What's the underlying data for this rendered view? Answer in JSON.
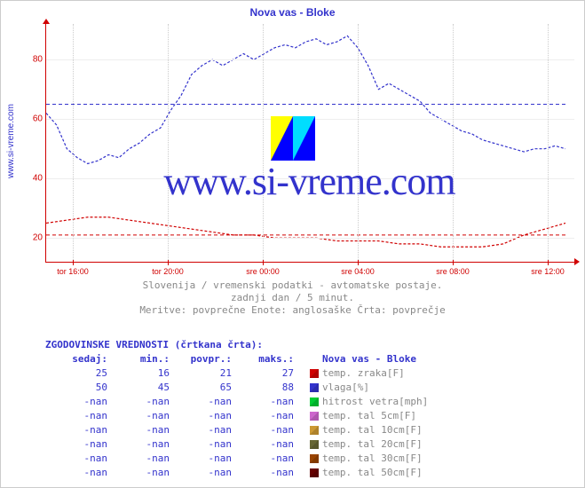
{
  "site": "www.si-vreme.com",
  "title": "Nova vas - Bloke",
  "watermark": "www.si-vreme.com",
  "subtitle": [
    "Slovenija / vremenski podatki - avtomatske postaje.",
    "zadnji dan / 5 minut.",
    "Meritve: povprečne  Enote: anglosaške  Črta: povprečje"
  ],
  "chart": {
    "ylim": [
      12,
      92
    ],
    "yticks": [
      20,
      40,
      60,
      80
    ],
    "xticks": [
      "tor 16:00",
      "tor 20:00",
      "sre 00:00",
      "sre 04:00",
      "sre 08:00",
      "sre 12:00"
    ],
    "grid_color": "#eeeeee",
    "axis_color": "#d00000",
    "bg": "#ffffff",
    "series": [
      {
        "name": "temp",
        "color": "#d00000",
        "dash": "3,2",
        "avg_dash": "none",
        "avg_y": 21,
        "points": [
          [
            0,
            25
          ],
          [
            4,
            26
          ],
          [
            8,
            27
          ],
          [
            12,
            27
          ],
          [
            16,
            26
          ],
          [
            20,
            25
          ],
          [
            24,
            24
          ],
          [
            28,
            23
          ],
          [
            32,
            22
          ],
          [
            36,
            21
          ],
          [
            40,
            21
          ],
          [
            44,
            20
          ],
          [
            48,
            20
          ],
          [
            52,
            20
          ],
          [
            56,
            19
          ],
          [
            60,
            19
          ],
          [
            64,
            19
          ],
          [
            68,
            18
          ],
          [
            72,
            18
          ],
          [
            76,
            17
          ],
          [
            80,
            17
          ],
          [
            84,
            17
          ],
          [
            88,
            18
          ],
          [
            92,
            21
          ],
          [
            96,
            23
          ],
          [
            100,
            25
          ]
        ]
      },
      {
        "name": "humidity",
        "color": "#3333cc",
        "dash": "3,2",
        "avg_dash": "none",
        "avg_y": 65,
        "points": [
          [
            0,
            62
          ],
          [
            2,
            58
          ],
          [
            4,
            50
          ],
          [
            6,
            47
          ],
          [
            8,
            45
          ],
          [
            10,
            46
          ],
          [
            12,
            48
          ],
          [
            14,
            47
          ],
          [
            16,
            50
          ],
          [
            18,
            52
          ],
          [
            20,
            55
          ],
          [
            22,
            57
          ],
          [
            24,
            63
          ],
          [
            26,
            68
          ],
          [
            28,
            75
          ],
          [
            30,
            78
          ],
          [
            32,
            80
          ],
          [
            34,
            78
          ],
          [
            36,
            80
          ],
          [
            38,
            82
          ],
          [
            40,
            80
          ],
          [
            42,
            82
          ],
          [
            44,
            84
          ],
          [
            46,
            85
          ],
          [
            48,
            84
          ],
          [
            50,
            86
          ],
          [
            52,
            87
          ],
          [
            54,
            85
          ],
          [
            56,
            86
          ],
          [
            58,
            88
          ],
          [
            60,
            84
          ],
          [
            62,
            78
          ],
          [
            64,
            70
          ],
          [
            66,
            72
          ],
          [
            68,
            70
          ],
          [
            70,
            68
          ],
          [
            72,
            66
          ],
          [
            74,
            62
          ],
          [
            76,
            60
          ],
          [
            78,
            58
          ],
          [
            80,
            56
          ],
          [
            82,
            55
          ],
          [
            84,
            53
          ],
          [
            86,
            52
          ],
          [
            88,
            51
          ],
          [
            90,
            50
          ],
          [
            92,
            49
          ],
          [
            94,
            50
          ],
          [
            96,
            50
          ],
          [
            98,
            51
          ],
          [
            100,
            50
          ]
        ]
      }
    ]
  },
  "table": {
    "header": "ZGODOVINSKE VREDNOSTI (črtkana črta):",
    "station": "Nova vas - Bloke",
    "columns": [
      "sedaj:",
      "min.:",
      "povpr.:",
      "maks.:"
    ],
    "rows": [
      {
        "vals": [
          "25",
          "16",
          "21",
          "27"
        ],
        "color": "#d00000",
        "metric": "temp. zraka[F]"
      },
      {
        "vals": [
          "50",
          "45",
          "65",
          "88"
        ],
        "color": "#3333cc",
        "metric": "vlaga[%]"
      },
      {
        "vals": [
          "-nan",
          "-nan",
          "-nan",
          "-nan"
        ],
        "color": "#00cc33",
        "metric": "hitrost vetra[mph]"
      },
      {
        "vals": [
          "-nan",
          "-nan",
          "-nan",
          "-nan"
        ],
        "color": "#cc66cc",
        "metric": "temp. tal  5cm[F]"
      },
      {
        "vals": [
          "-nan",
          "-nan",
          "-nan",
          "-nan"
        ],
        "color": "#cc9933",
        "metric": "temp. tal 10cm[F]"
      },
      {
        "vals": [
          "-nan",
          "-nan",
          "-nan",
          "-nan"
        ],
        "color": "#666633",
        "metric": "temp. tal 20cm[F]"
      },
      {
        "vals": [
          "-nan",
          "-nan",
          "-nan",
          "-nan"
        ],
        "color": "#994400",
        "metric": "temp. tal 30cm[F]"
      },
      {
        "vals": [
          "-nan",
          "-nan",
          "-nan",
          "-nan"
        ],
        "color": "#660000",
        "metric": "temp. tal 50cm[F]"
      }
    ]
  }
}
